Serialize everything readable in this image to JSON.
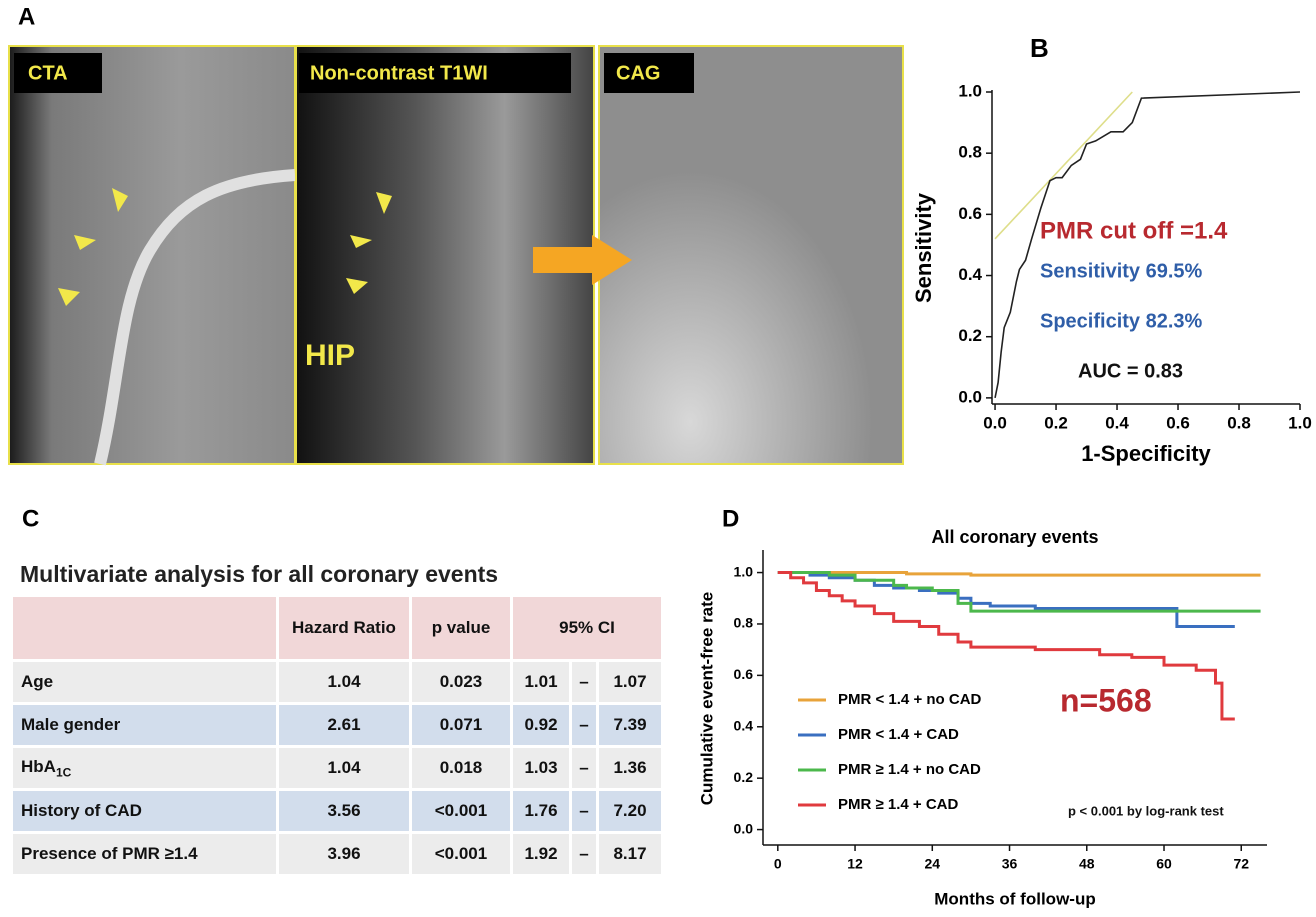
{
  "panel_labels": [
    "A",
    "B",
    "C",
    "D"
  ],
  "panel_a": {
    "images": [
      "CTA",
      "Non-contrast T1WI",
      "CAG"
    ],
    "annotation": "HIP"
  },
  "chart_data": [
    {
      "type": "line",
      "xlabel": "1-Specificity",
      "ylabel": "Sensitivity",
      "xlim": [
        -0.01,
        1.0
      ],
      "ylim": [
        -0.02,
        1.0
      ],
      "xticks": [
        {
          "value": 0,
          "label": "0.0"
        },
        {
          "value": 0.2,
          "label": "0.2"
        },
        {
          "value": 0.4,
          "label": "0.4"
        },
        {
          "value": 0.6,
          "label": "0.6"
        },
        {
          "value": 0.8,
          "label": "0.8"
        },
        {
          "value": 1,
          "label": "1.0"
        }
      ],
      "yticks": [
        {
          "value": 0,
          "label": "0.0"
        },
        {
          "value": 0.2,
          "label": "0.2"
        },
        {
          "value": 0.4,
          "label": "0.4"
        },
        {
          "value": 0.6,
          "label": "0.6"
        },
        {
          "value": 0.8,
          "label": "0.8"
        },
        {
          "value": 1,
          "label": "1.0"
        }
      ],
      "series": [
        {
          "color": "#dede8a",
          "x": [
            0,
            0.45
          ],
          "values": [
            0.52,
            1.0
          ]
        },
        {
          "color": "#222222",
          "x": [
            0,
            0.01,
            0.02,
            0.03,
            0.05,
            0.07,
            0.08,
            0.1,
            0.12,
            0.15,
            0.17,
            0.18,
            0.2,
            0.22,
            0.25,
            0.28,
            0.3,
            0.33,
            0.38,
            0.42,
            0.45,
            0.48,
            1.0
          ],
          "values": [
            0,
            0.05,
            0.15,
            0.23,
            0.28,
            0.38,
            0.42,
            0.45,
            0.52,
            0.62,
            0.68,
            0.71,
            0.72,
            0.72,
            0.76,
            0.78,
            0.83,
            0.84,
            0.87,
            0.87,
            0.9,
            0.98,
            1.0
          ]
        }
      ],
      "annotations": [
        {
          "text": "PMR cut off =1.4",
          "color": "#b8292f"
        },
        {
          "text": "Sensitivity 69.5%",
          "color": "#2f5ea8"
        },
        {
          "text": "Specificity 82.3%",
          "color": "#2f5ea8"
        },
        {
          "text": "AUC = 0.83",
          "color": "#111111"
        }
      ]
    },
    {
      "type": "line",
      "step": true,
      "title": "All coronary events",
      "xlabel": "Months  of follow-up",
      "ylabel": "Cumulative  event-free  rate",
      "xlim": [
        -2.3,
        76
      ],
      "ylim": [
        -0.06,
        1.08
      ],
      "xticks": [
        0,
        12,
        24,
        36,
        48,
        60,
        72
      ],
      "yticks": [
        {
          "value": 0,
          "label": "0.0"
        },
        {
          "value": 0.2,
          "label": "0.2"
        },
        {
          "value": 0.4,
          "label": "0.4"
        },
        {
          "value": 0.6,
          "label": "0.6"
        },
        {
          "value": 0.8,
          "label": "0.8"
        },
        {
          "value": 1,
          "label": "1.0"
        }
      ],
      "series": [
        {
          "name": "PMR < 1.4 + no CAD",
          "color": "#e8a33a",
          "x": [
            0,
            10,
            20,
            30,
            50,
            75
          ],
          "values": [
            1.0,
            1.0,
            0.995,
            0.99,
            0.99,
            0.99
          ]
        },
        {
          "name": "PMR < 1.4 + CAD",
          "color": "#3a6fc0",
          "x": [
            0,
            5,
            8,
            12,
            15,
            18,
            22,
            25,
            28,
            30,
            33,
            40,
            50,
            62,
            71
          ],
          "values": [
            1,
            0.99,
            0.98,
            0.97,
            0.95,
            0.94,
            0.93,
            0.92,
            0.9,
            0.88,
            0.87,
            0.86,
            0.86,
            0.79,
            0.79
          ]
        },
        {
          "name": "PMR ≥ 1.4 + no CAD",
          "color": "#4cb84c",
          "x": [
            0,
            8,
            12,
            18,
            20,
            24,
            28,
            30,
            40,
            55,
            75
          ],
          "values": [
            1,
            0.99,
            0.97,
            0.95,
            0.94,
            0.93,
            0.88,
            0.85,
            0.85,
            0.85,
            0.85
          ]
        },
        {
          "name": "PMR ≥ 1.4 + CAD",
          "color": "#e03a3e",
          "x": [
            0,
            2,
            4,
            6,
            8,
            10,
            12,
            15,
            18,
            22,
            25,
            28,
            30,
            40,
            50,
            55,
            60,
            65,
            68,
            69,
            71
          ],
          "values": [
            1,
            0.98,
            0.96,
            0.93,
            0.91,
            0.89,
            0.87,
            0.84,
            0.81,
            0.79,
            0.76,
            0.73,
            0.71,
            0.7,
            0.68,
            0.67,
            0.64,
            0.62,
            0.57,
            0.43,
            0.43
          ]
        }
      ],
      "annotations": [
        {
          "text": "n=568",
          "color": "#b8292f"
        },
        {
          "text": "p < 0.001 by log-rank test",
          "color": "#111111"
        }
      ]
    }
  ],
  "table": {
    "title": "Multivariate analysis for all coronary events",
    "header": [
      "Hazard Ratio",
      "p value",
      "95% CI"
    ],
    "ci_separator": "–",
    "rows": [
      {
        "label": "Age",
        "hr": "1.04",
        "p": "0.023",
        "ci_low": "1.01",
        "ci_high": "1.07"
      },
      {
        "label": "Male gender",
        "hr": "2.61",
        "p": "0.071",
        "ci_low": "0.92",
        "ci_high": "7.39"
      },
      {
        "label": "HbA",
        "label_sub": "1C",
        "hr": "1.04",
        "p": "0.018",
        "ci_low": "1.03",
        "ci_high": "1.36"
      },
      {
        "label": "History of CAD",
        "hr": "3.56",
        "p": "<0.001",
        "ci_low": "1.76",
        "ci_high": "7.20"
      },
      {
        "label": "Presence of PMR ≥1.4",
        "hr": "3.96",
        "p": "<0.001",
        "ci_low": "1.92",
        "ci_high": "8.17"
      }
    ]
  }
}
